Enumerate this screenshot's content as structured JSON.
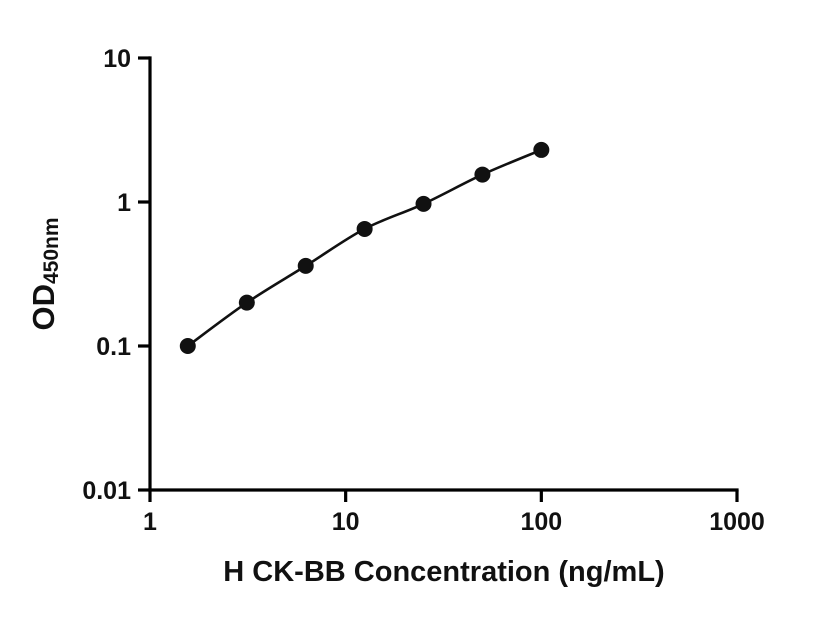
{
  "chart_data": {
    "type": "scatter",
    "title": "",
    "xlabel": "H CK-BB Concentration (ng/mL)",
    "ylabel_main": "OD",
    "ylabel_sub": "450nm",
    "xscale": "log",
    "yscale": "log",
    "xlim": [
      1,
      1000
    ],
    "ylim": [
      0.01,
      10
    ],
    "x_ticks": [
      "1",
      "10",
      "100",
      "1000"
    ],
    "y_ticks": [
      "0.01",
      "0.1",
      "1",
      "10"
    ],
    "x": [
      1.56,
      3.125,
      6.25,
      12.5,
      25,
      50,
      100
    ],
    "y": [
      0.1,
      0.2,
      0.36,
      0.65,
      0.97,
      1.55,
      2.3
    ],
    "has_fit_line": true,
    "marker_color": "#111111",
    "line_color": "#111111",
    "axis_color": "#000000"
  }
}
